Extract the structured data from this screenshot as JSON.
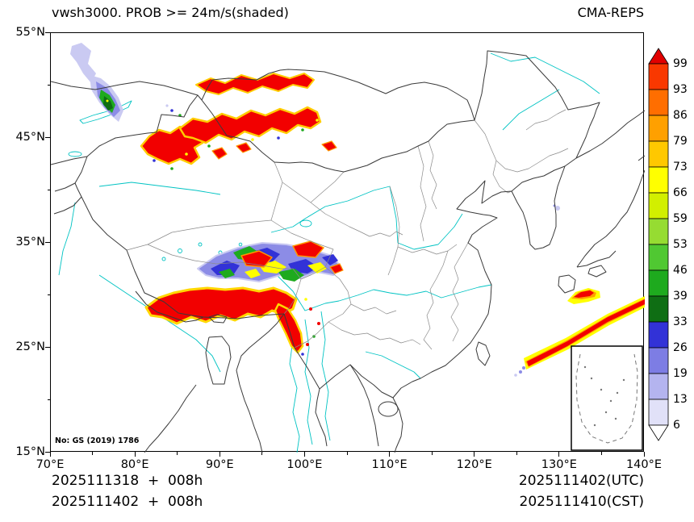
{
  "header": {
    "title_left": "vwsh3000. PROB >= 24m/s(shaded)",
    "title_right": "CMA-REPS"
  },
  "axes": {
    "x_ticks": [
      "70°E",
      "80°E",
      "90°E",
      "100°E",
      "110°E",
      "120°E",
      "130°E",
      "140°E"
    ],
    "y_ticks": [
      "55°N",
      "45°N",
      "35°N",
      "25°N",
      "15°N"
    ]
  },
  "colorbar": {
    "levels": [
      "99",
      "93",
      "86",
      "79",
      "73",
      "66",
      "59",
      "53",
      "46",
      "39",
      "33",
      "26",
      "19",
      "13",
      "6"
    ],
    "colors_top_to_bottom": [
      "#e10000",
      "#f93800",
      "#ff6e00",
      "#ffa000",
      "#ffc800",
      "#ffff00",
      "#d2ef00",
      "#96dc32",
      "#50c832",
      "#1eaa1e",
      "#0f6e14",
      "#3232d7",
      "#7d7de4",
      "#b4b4ef",
      "#e1e1f8",
      "#ffffff"
    ]
  },
  "map": {
    "note": "No: GS (2019) 1786"
  },
  "footer": {
    "left_lines": [
      "2025111318  +  008h",
      "2025111402  +  008h"
    ],
    "right_lines": [
      "2025111402(UTC)",
      "2025111410(CST)"
    ]
  },
  "chart_data": {
    "type": "heatmap",
    "title": "vwsh3000. PROB >= 24m/s(shaded)",
    "model": "CMA-REPS",
    "lon_range_deg_e": [
      70,
      140
    ],
    "lat_range_deg_n": [
      15,
      55
    ],
    "shading_variable": "probability of vertical wind shear at 3000m >= 24 m/s",
    "units": "percent",
    "levels": [
      6,
      13,
      19,
      26,
      33,
      39,
      46,
      53,
      59,
      66,
      73,
      79,
      86,
      93,
      99
    ],
    "regions": [
      {
        "area": "northwest corner ~76-78E, 47-52N",
        "levels_seen": "6-46 small patch with green core"
      },
      {
        "area": "north Xinjiang / Mongolia border ~81-103E, 42-48N",
        "levels_seen": "broad >=99 red band with yellow fringe"
      },
      {
        "area": "central Tibetan Plateau ~87-104E, 30-35N",
        "levels_seen": "mottled mix 6-99 (blue/green/yellow/red)"
      },
      {
        "area": "south Tibetan Plateau / Himalayas ~81-100E, 24-30N",
        "levels_seen": ">=99 solid red with southward arm"
      },
      {
        "area": "sea southeast of Korea toward Japan ~126-140E, 26-33N",
        "levels_seen": ">=99 narrow diagonal streak with orange/yellow fringe"
      }
    ]
  }
}
